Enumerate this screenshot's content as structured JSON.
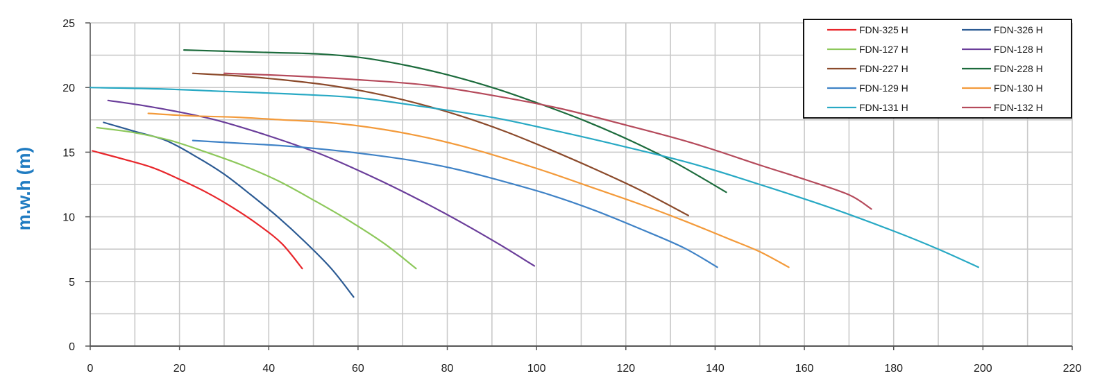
{
  "chart_data": {
    "type": "line",
    "title": "",
    "xlabel": "",
    "ylabel": "m.w.h (m)",
    "xlim": [
      0,
      220
    ],
    "ylim": [
      0,
      25
    ],
    "x_ticks": [
      0,
      20,
      40,
      60,
      80,
      100,
      120,
      140,
      160,
      180,
      200,
      220
    ],
    "y_ticks": [
      0,
      5,
      10,
      15,
      20,
      25
    ],
    "x_tick_labels": [
      "0",
      "20",
      "40",
      "60",
      "80",
      "100",
      "120",
      "140",
      "160",
      "180",
      "200",
      "220"
    ],
    "y_tick_labels": [
      "0",
      "5",
      "10",
      "15",
      "20",
      "25"
    ],
    "grid": true,
    "legend_position": "top-right",
    "series": [
      {
        "name": "FDN-325 H",
        "color": "#e8262b",
        "points": [
          [
            0.5,
            15.1
          ],
          [
            7,
            14.5
          ],
          [
            14,
            13.8
          ],
          [
            20,
            12.9
          ],
          [
            26,
            11.9
          ],
          [
            32,
            10.7
          ],
          [
            38,
            9.3
          ],
          [
            43,
            7.9
          ],
          [
            47.5,
            6.0
          ]
        ]
      },
      {
        "name": "FDN-326 H",
        "color": "#2b5a93",
        "points": [
          [
            3,
            17.3
          ],
          [
            10,
            16.6
          ],
          [
            17,
            15.9
          ],
          [
            24,
            14.6
          ],
          [
            30,
            13.3
          ],
          [
            36,
            11.7
          ],
          [
            42,
            10.0
          ],
          [
            48,
            8.1
          ],
          [
            54,
            6.0
          ],
          [
            59,
            3.8
          ]
        ]
      },
      {
        "name": "FDN-127 H",
        "color": "#8dc85b",
        "points": [
          [
            1.5,
            16.9
          ],
          [
            10,
            16.5
          ],
          [
            18,
            15.9
          ],
          [
            26,
            15.0
          ],
          [
            34,
            14.0
          ],
          [
            42,
            12.8
          ],
          [
            50,
            11.3
          ],
          [
            58,
            9.7
          ],
          [
            66,
            7.9
          ],
          [
            73,
            6.0
          ]
        ]
      },
      {
        "name": "FDN-128 H",
        "color": "#6a3d9a",
        "points": [
          [
            4,
            19.0
          ],
          [
            12,
            18.6
          ],
          [
            20,
            18.1
          ],
          [
            28,
            17.5
          ],
          [
            36,
            16.7
          ],
          [
            44,
            15.8
          ],
          [
            52,
            14.8
          ],
          [
            60,
            13.6
          ],
          [
            68,
            12.3
          ],
          [
            76,
            10.9
          ],
          [
            84,
            9.4
          ],
          [
            92,
            7.8
          ],
          [
            99.5,
            6.2
          ]
        ]
      },
      {
        "name": "FDN-227 H",
        "color": "#8b4a2b",
        "points": [
          [
            23,
            21.1
          ],
          [
            33,
            20.9
          ],
          [
            43,
            20.6
          ],
          [
            53,
            20.2
          ],
          [
            63,
            19.6
          ],
          [
            73,
            18.8
          ],
          [
            83,
            17.8
          ],
          [
            93,
            16.6
          ],
          [
            103,
            15.2
          ],
          [
            113,
            13.7
          ],
          [
            123,
            12.1
          ],
          [
            134,
            10.1
          ]
        ]
      },
      {
        "name": "FDN-228 H",
        "color": "#1c6b3c",
        "points": [
          [
            21,
            22.9
          ],
          [
            31,
            22.8
          ],
          [
            41,
            22.7
          ],
          [
            51,
            22.6
          ],
          [
            61,
            22.3
          ],
          [
            71,
            21.7
          ],
          [
            81,
            20.9
          ],
          [
            91,
            19.9
          ],
          [
            101,
            18.7
          ],
          [
            111,
            17.4
          ],
          [
            121,
            15.9
          ],
          [
            131,
            14.2
          ],
          [
            142.5,
            11.9
          ]
        ]
      },
      {
        "name": "FDN-129 H",
        "color": "#3f82c6",
        "points": [
          [
            23,
            15.9
          ],
          [
            33,
            15.7
          ],
          [
            43,
            15.5
          ],
          [
            53,
            15.2
          ],
          [
            63,
            14.8
          ],
          [
            73,
            14.3
          ],
          [
            83,
            13.6
          ],
          [
            93,
            12.7
          ],
          [
            103,
            11.7
          ],
          [
            113,
            10.5
          ],
          [
            123,
            9.1
          ],
          [
            133,
            7.6
          ],
          [
            140.5,
            6.1
          ]
        ]
      },
      {
        "name": "FDN-130 H",
        "color": "#f39a3a",
        "points": [
          [
            13,
            18.0
          ],
          [
            23,
            17.8
          ],
          [
            33,
            17.7
          ],
          [
            43,
            17.5
          ],
          [
            53,
            17.3
          ],
          [
            63,
            16.9
          ],
          [
            73,
            16.3
          ],
          [
            83,
            15.5
          ],
          [
            93,
            14.5
          ],
          [
            103,
            13.4
          ],
          [
            113,
            12.2
          ],
          [
            123,
            11.0
          ],
          [
            133,
            9.7
          ],
          [
            143,
            8.3
          ],
          [
            150,
            7.3
          ],
          [
            156.5,
            6.1
          ]
        ]
      },
      {
        "name": "FDN-131 H",
        "color": "#28a9c4",
        "points": [
          [
            0,
            20.0
          ],
          [
            15,
            19.9
          ],
          [
            30,
            19.7
          ],
          [
            45,
            19.5
          ],
          [
            60,
            19.2
          ],
          [
            75,
            18.5
          ],
          [
            90,
            17.7
          ],
          [
            105,
            16.6
          ],
          [
            120,
            15.4
          ],
          [
            135,
            14.1
          ],
          [
            150,
            12.5
          ],
          [
            165,
            10.8
          ],
          [
            180,
            8.9
          ],
          [
            190,
            7.5
          ],
          [
            199,
            6.1
          ]
        ]
      },
      {
        "name": "FDN-132 H",
        "color": "#b54a5b",
        "points": [
          [
            30,
            21.1
          ],
          [
            45,
            20.9
          ],
          [
            60,
            20.6
          ],
          [
            75,
            20.2
          ],
          [
            90,
            19.4
          ],
          [
            105,
            18.4
          ],
          [
            120,
            17.1
          ],
          [
            135,
            15.7
          ],
          [
            150,
            14.0
          ],
          [
            160,
            12.9
          ],
          [
            170,
            11.7
          ],
          [
            175,
            10.6
          ]
        ]
      }
    ]
  }
}
